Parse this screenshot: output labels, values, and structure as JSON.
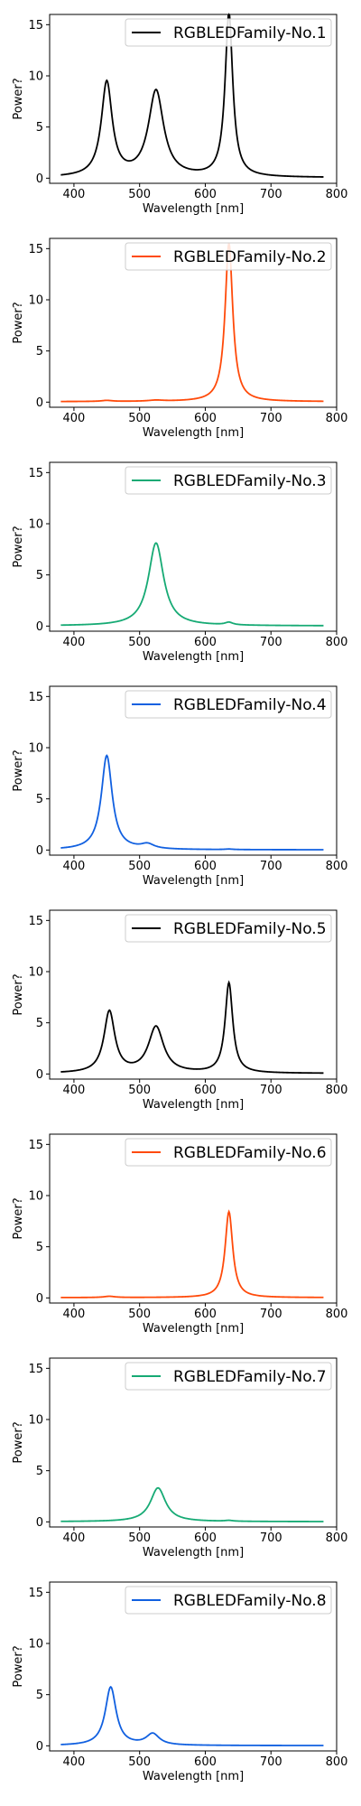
{
  "chart_data": [
    {
      "type": "line",
      "xlabel": "Wavelength [nm]",
      "ylabel": "Power?",
      "xlim": [
        363,
        800
      ],
      "ylim": [
        -0.5,
        16
      ],
      "xticks": [
        400,
        500,
        600,
        700,
        800
      ],
      "yticks": [
        0,
        5,
        10,
        15
      ],
      "legend_position": "top-right",
      "series": [
        {
          "name": "RGBLEDFamily-No.1",
          "color": "#000000",
          "peaks": [
            {
              "center": 450,
              "height": 9.2,
              "width": 10
            },
            {
              "center": 525,
              "height": 8.4,
              "width": 14
            },
            {
              "center": 636,
              "height": 16.0,
              "width": 7
            }
          ],
          "baseline": 0.05
        }
      ]
    },
    {
      "type": "line",
      "xlabel": "Wavelength [nm]",
      "ylabel": "Power?",
      "xlim": [
        363,
        800
      ],
      "ylim": [
        -0.5,
        16
      ],
      "xticks": [
        400,
        500,
        600,
        700,
        800
      ],
      "yticks": [
        0,
        5,
        10,
        15
      ],
      "legend_position": "top-right",
      "series": [
        {
          "name": "RGBLEDFamily-No.2",
          "color": "#ff4a0a",
          "peaks": [
            {
              "center": 450,
              "height": 0.1,
              "width": 10
            },
            {
              "center": 525,
              "height": 0.1,
              "width": 14
            },
            {
              "center": 636,
              "height": 15.5,
              "width": 7
            }
          ],
          "baseline": 0.05
        }
      ]
    },
    {
      "type": "line",
      "xlabel": "Wavelength [nm]",
      "ylabel": "Power?",
      "xlim": [
        363,
        800
      ],
      "ylim": [
        -0.5,
        16
      ],
      "xticks": [
        400,
        500,
        600,
        700,
        800
      ],
      "yticks": [
        0,
        5,
        10,
        15
      ],
      "legend_position": "top-right",
      "series": [
        {
          "name": "RGBLEDFamily-No.3",
          "color": "#16aa74",
          "peaks": [
            {
              "center": 525,
              "height": 8.1,
              "width": 14
            },
            {
              "center": 636,
              "height": 0.25,
              "width": 7
            }
          ],
          "baseline": 0.02
        }
      ]
    },
    {
      "type": "line",
      "xlabel": "Wavelength [nm]",
      "ylabel": "Power?",
      "xlim": [
        363,
        800
      ],
      "ylim": [
        -0.5,
        16
      ],
      "xticks": [
        400,
        500,
        600,
        700,
        800
      ],
      "yticks": [
        0,
        5,
        10,
        15
      ],
      "legend_position": "top-right",
      "series": [
        {
          "name": "RGBLEDFamily-No.4",
          "color": "#1160e0",
          "peaks": [
            {
              "center": 450,
              "height": 9.2,
              "width": 10
            },
            {
              "center": 512,
              "height": 0.45,
              "width": 12
            },
            {
              "center": 636,
              "height": 0.05,
              "width": 7
            }
          ],
          "baseline": 0.02
        }
      ]
    },
    {
      "type": "line",
      "xlabel": "Wavelength [nm]",
      "ylabel": "Power?",
      "xlim": [
        363,
        800
      ],
      "ylim": [
        -0.5,
        16
      ],
      "xticks": [
        400,
        500,
        600,
        700,
        800
      ],
      "yticks": [
        0,
        5,
        10,
        15
      ],
      "legend_position": "top-right",
      "series": [
        {
          "name": "RGBLEDFamily-No.5",
          "color": "#000000",
          "peaks": [
            {
              "center": 454,
              "height": 6.0,
              "width": 10
            },
            {
              "center": 525,
              "height": 4.5,
              "width": 14
            },
            {
              "center": 636,
              "height": 8.8,
              "width": 7
            }
          ],
          "baseline": 0.05
        }
      ]
    },
    {
      "type": "line",
      "xlabel": "Wavelength [nm]",
      "ylabel": "Power?",
      "xlim": [
        363,
        800
      ],
      "ylim": [
        -0.5,
        16
      ],
      "xticks": [
        400,
        500,
        600,
        700,
        800
      ],
      "yticks": [
        0,
        5,
        10,
        15
      ],
      "legend_position": "top-right",
      "series": [
        {
          "name": "RGBLEDFamily-No.6",
          "color": "#ff4a0a",
          "peaks": [
            {
              "center": 454,
              "height": 0.12,
              "width": 10
            },
            {
              "center": 636,
              "height": 8.4,
              "width": 7
            }
          ],
          "baseline": 0.03
        }
      ]
    },
    {
      "type": "line",
      "xlabel": "Wavelength [nm]",
      "ylabel": "Power?",
      "xlim": [
        363,
        800
      ],
      "ylim": [
        -0.5,
        16
      ],
      "xticks": [
        400,
        500,
        600,
        700,
        800
      ],
      "yticks": [
        0,
        5,
        10,
        15
      ],
      "legend_position": "top-right",
      "series": [
        {
          "name": "RGBLEDFamily-No.7",
          "color": "#16aa74",
          "peaks": [
            {
              "center": 528,
              "height": 3.3,
              "width": 14
            },
            {
              "center": 636,
              "height": 0.08,
              "width": 7
            }
          ],
          "baseline": 0.02
        }
      ]
    },
    {
      "type": "line",
      "xlabel": "Wavelength [nm]",
      "ylabel": "Power?",
      "xlim": [
        363,
        800
      ],
      "ylim": [
        -0.5,
        16
      ],
      "xticks": [
        400,
        500,
        600,
        700,
        800
      ],
      "yticks": [
        0,
        5,
        10,
        15
      ],
      "legend_position": "top-right",
      "series": [
        {
          "name": "RGBLEDFamily-No.8",
          "color": "#1160e0",
          "peaks": [
            {
              "center": 456,
              "height": 5.7,
              "width": 10
            },
            {
              "center": 520,
              "height": 1.1,
              "width": 12
            }
          ],
          "baseline": 0.02
        }
      ]
    }
  ]
}
